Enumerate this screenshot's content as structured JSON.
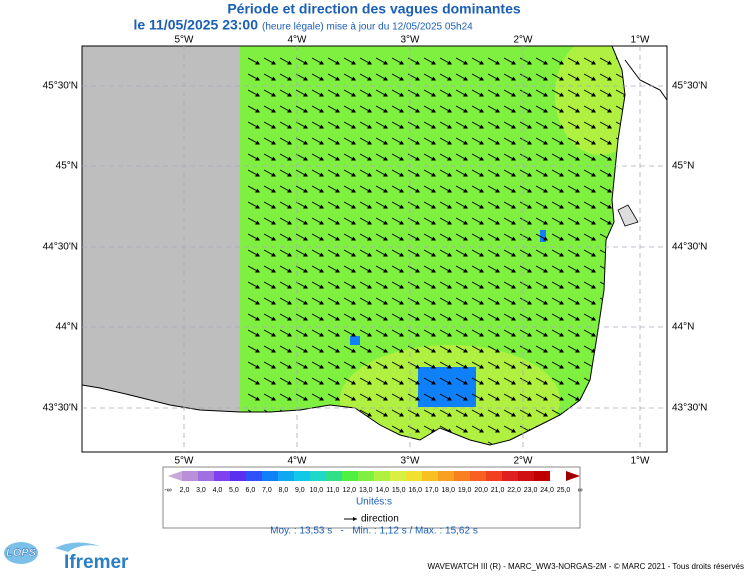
{
  "header": {
    "title": "Période et direction des vagues dominantes",
    "date": "le 11/05/2025 23:00",
    "update": "(heure légale) mise à jour du 12/05/2025 05h24"
  },
  "map": {
    "lon_labels": [
      "5°W",
      "4°W",
      "3°W",
      "2°W",
      "1°W"
    ],
    "lat_labels": [
      "45°30'N",
      "45°N",
      "44°30'N",
      "44°N",
      "43°30'N"
    ]
  },
  "colorbar": {
    "labels": [
      "-∞",
      "2,0",
      "3,0",
      "4,0",
      "5,0",
      "6,0",
      "7,0",
      "8,0",
      "9,0",
      "10,0",
      "11,0",
      "12,0",
      "13,0",
      "14,0",
      "15,0",
      "16,0",
      "17,0",
      "18,0",
      "19,0",
      "20,0",
      "21,0",
      "22,0",
      "23,0",
      "24,0",
      "25,0",
      "∞"
    ],
    "colors": [
      "#c8a8d8",
      "#b890d8",
      "#a070e0",
      "#8040f0",
      "#5a30f0",
      "#3050f8",
      "#1080f8",
      "#10a8f0",
      "#10c8e8",
      "#20d8c8",
      "#30e088",
      "#50f040",
      "#80f040",
      "#b0f040",
      "#d8f040",
      "#f0e030",
      "#f8c020",
      "#f8a020",
      "#f88020",
      "#f86020",
      "#f04020",
      "#e02020",
      "#d01010",
      "#c00000",
      "#a00000"
    ],
    "unit": "Unités:s"
  },
  "legend": {
    "direction": "direction"
  },
  "stats": "Moy. : 13,53 s   -   Min. : 1,12 s / Max. : 15,62 s",
  "logos": {
    "lops": "LOPS",
    "ifremer": "Ifremer"
  },
  "footer": "WAVEWATCH III (R) - MARC_WW3-NORGAS-2M - © MARC 2021 - Tous droits réservés"
}
